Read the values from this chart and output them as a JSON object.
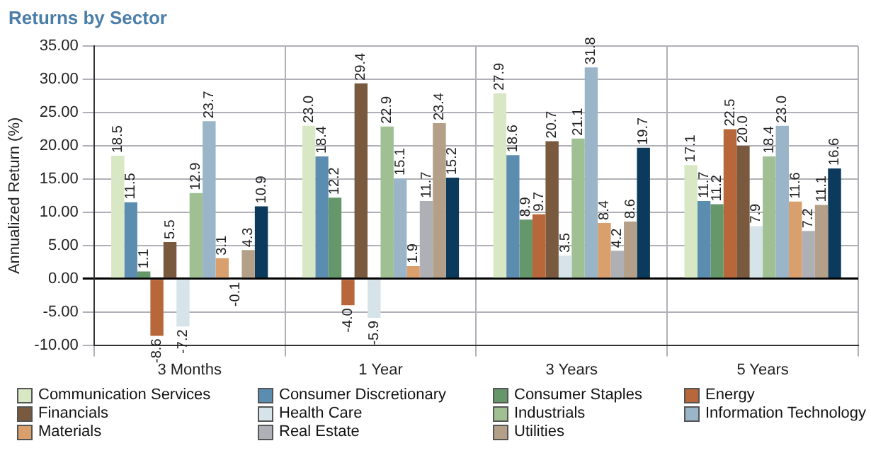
{
  "chart_data": {
    "type": "bar",
    "title": "Returns by Sector",
    "ylabel": "Annualized Return (%)",
    "categories": [
      "3 Months",
      "1 Year",
      "3 Years",
      "5 Years"
    ],
    "series": [
      {
        "name": "Communication Services",
        "color": "#d9e8c4",
        "values": [
          18.5,
          23.0,
          27.9,
          17.1
        ],
        "value_labels": [
          "18.5",
          "23.0",
          "27.9",
          "17.1"
        ]
      },
      {
        "name": "Consumer Discretionary",
        "color": "#5b8db0",
        "values": [
          11.5,
          18.4,
          18.6,
          11.7
        ],
        "value_labels": [
          "11.5",
          "18.4",
          "18.6",
          "11.7"
        ]
      },
      {
        "name": "Consumer Staples",
        "color": "#66976a",
        "values": [
          1.1,
          12.2,
          8.9,
          11.2
        ],
        "value_labels": [
          "1.1",
          "12.2",
          "8.9",
          "11.2"
        ]
      },
      {
        "name": "Energy",
        "color": "#b8673a",
        "values": [
          -8.6,
          -4.0,
          9.7,
          22.5
        ],
        "value_labels": [
          "-8.6",
          "-4.0",
          "9.7",
          "22.5"
        ]
      },
      {
        "name": "Financials",
        "color": "#7a5a3e",
        "values": [
          5.5,
          29.4,
          20.7,
          20.0
        ],
        "value_labels": [
          "5.5",
          "29.4",
          "20.7",
          "20.0"
        ]
      },
      {
        "name": "Health Care",
        "color": "#d6e4ea",
        "values": [
          -7.2,
          -5.9,
          3.5,
          7.9
        ],
        "value_labels": [
          "-7.2",
          "-5.9",
          "3.5",
          "7.9"
        ]
      },
      {
        "name": "Industrials",
        "color": "#a0c094",
        "values": [
          12.9,
          22.9,
          21.1,
          18.4
        ],
        "value_labels": [
          "12.9",
          "22.9",
          "21.1",
          "18.4"
        ]
      },
      {
        "name": "Information Technology",
        "color": "#9ab5c8",
        "values": [
          23.7,
          15.1,
          31.8,
          23.0
        ],
        "value_labels": [
          "23.7",
          "15.1",
          "31.8",
          "23.0"
        ]
      },
      {
        "name": "Materials",
        "color": "#d9a06e",
        "values": [
          3.1,
          1.9,
          8.4,
          11.6
        ],
        "value_labels": [
          "3.1",
          "1.9",
          "8.4",
          "11.6"
        ]
      },
      {
        "name": "Real Estate",
        "color": "#aeb0b6",
        "values": [
          -0.1,
          11.7,
          4.2,
          7.2
        ],
        "value_labels": [
          "-0.1",
          "11.7",
          "4.2",
          "7.2"
        ]
      },
      {
        "name": "Utilities",
        "color": "#b4a088",
        "values": [
          4.3,
          23.4,
          8.6,
          11.1
        ],
        "value_labels": [
          "4.3",
          "23.4",
          "8.6",
          "11.1"
        ]
      },
      {
        "color": "#0b3a5c",
        "values": [
          10.9,
          15.2,
          19.7,
          16.6
        ],
        "value_labels": [
          "10.9",
          "15.2",
          "19.7",
          "16.6"
        ]
      }
    ],
    "ylim": [
      -10,
      35
    ],
    "yticks": [
      {
        "value": -10,
        "label": "-10.00"
      },
      {
        "value": -5,
        "label": "-5.00"
      },
      {
        "value": 0,
        "label": "0.00"
      },
      {
        "value": 5,
        "label": "5.00"
      },
      {
        "value": 10,
        "label": "10.00"
      },
      {
        "value": 15,
        "label": "15.00"
      },
      {
        "value": 20,
        "label": "20.00"
      },
      {
        "value": 25,
        "label": "25.00"
      },
      {
        "value": 30,
        "label": "30.00"
      },
      {
        "value": 35,
        "label": "35.00"
      }
    ],
    "grid": true,
    "legend": "bottom"
  }
}
